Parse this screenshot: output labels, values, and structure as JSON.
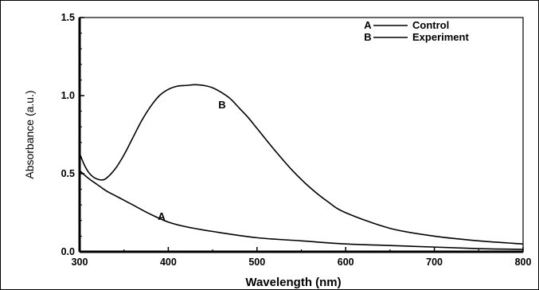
{
  "chart_data": {
    "type": "line",
    "xlabel": "Wavelength (nm)",
    "ylabel": "Absorbance (a.u.)",
    "xlim": [
      300,
      800
    ],
    "ylim": [
      0.0,
      1.5
    ],
    "x_ticks": [
      "300",
      "400",
      "500",
      "600",
      "700",
      "800"
    ],
    "y_ticks": [
      "0.0",
      "0.5",
      "1.0",
      "1.5"
    ],
    "grid": false,
    "legend_position": "top-right",
    "legend": [
      {
        "marker": "A",
        "label": "Control"
      },
      {
        "marker": "B",
        "label": "Experiment"
      }
    ],
    "series": [
      {
        "name": "Control",
        "label": "A",
        "color": "#000000",
        "x": [
          300,
          310,
          320,
          330,
          340,
          350,
          360,
          380,
          400,
          420,
          450,
          500,
          550,
          600,
          650,
          700,
          750,
          800
        ],
        "y": [
          0.52,
          0.47,
          0.43,
          0.39,
          0.36,
          0.33,
          0.3,
          0.24,
          0.19,
          0.16,
          0.13,
          0.09,
          0.07,
          0.05,
          0.04,
          0.03,
          0.02,
          0.015
        ]
      },
      {
        "name": "Experiment",
        "label": "B",
        "color": "#000000",
        "x": [
          300,
          305,
          310,
          315,
          320,
          325,
          330,
          340,
          350,
          360,
          370,
          380,
          390,
          400,
          410,
          420,
          430,
          440,
          450,
          460,
          470,
          480,
          490,
          500,
          520,
          540,
          560,
          580,
          600,
          650,
          700,
          750,
          800
        ],
        "y": [
          0.63,
          0.56,
          0.51,
          0.48,
          0.465,
          0.46,
          0.47,
          0.53,
          0.62,
          0.73,
          0.84,
          0.93,
          1.0,
          1.04,
          1.06,
          1.065,
          1.07,
          1.065,
          1.05,
          1.02,
          0.98,
          0.92,
          0.86,
          0.79,
          0.65,
          0.52,
          0.41,
          0.32,
          0.25,
          0.15,
          0.1,
          0.07,
          0.05
        ]
      }
    ]
  }
}
